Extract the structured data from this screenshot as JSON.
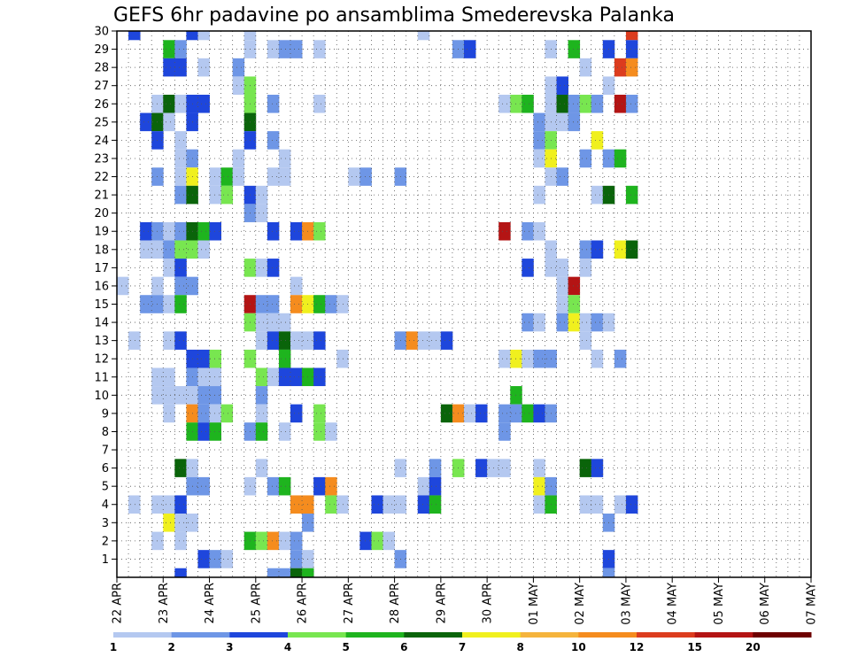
{
  "chart_data": {
    "type": "heatmap",
    "title": "GEFS 6hr padavine po ansamblima Smederevska Palanka",
    "xlabel": "",
    "ylabel": "",
    "x_ticks": [
      "22 APR",
      "23 APR",
      "24 APR",
      "25 APR",
      "26 APR",
      "27 APR",
      "28 APR",
      "29 APR",
      "30 APR",
      "01 MAY",
      "02 MAY",
      "03 MAY",
      "04 MAY",
      "05 MAY",
      "06 MAY",
      "07 MAY"
    ],
    "xlim": [
      "22 APR 00Z",
      "07 MAY 00Z"
    ],
    "ylim": [
      0,
      30
    ],
    "y_ticks": [
      1,
      2,
      3,
      4,
      5,
      6,
      7,
      8,
      9,
      10,
      11,
      12,
      13,
      14,
      15,
      16,
      17,
      18,
      19,
      20,
      21,
      22,
      23,
      24,
      25,
      26,
      27,
      28,
      29,
      30
    ],
    "grid": true,
    "legend": {
      "position": "bottom",
      "labels": [
        "1",
        "2",
        "3",
        "4",
        "5",
        "6",
        "7",
        "8",
        "10",
        "12",
        "15",
        "20"
      ],
      "colors": [
        "#b4c8f0",
        "#6e96e6",
        "#1e46dc",
        "#78e650",
        "#1eb41e",
        "#0a640a",
        "#f0f01e",
        "#f5b43c",
        "#f58c1e",
        "#dc3c1e",
        "#b41414",
        "#6e0000"
      ]
    },
    "color_values": [
      1,
      2,
      3,
      4,
      5,
      6,
      7,
      8,
      10,
      12,
      15,
      20
    ],
    "points": [
      [
        1,
        30,
        3
      ],
      [
        6,
        30,
        3
      ],
      [
        7,
        30,
        1
      ],
      [
        11,
        30,
        1
      ],
      [
        26,
        30,
        1
      ],
      [
        44,
        30,
        12
      ],
      [
        4,
        29,
        5
      ],
      [
        5,
        29,
        2
      ],
      [
        11,
        29,
        1
      ],
      [
        13,
        29,
        1
      ],
      [
        14,
        29,
        2
      ],
      [
        15,
        29,
        2
      ],
      [
        17,
        29,
        1
      ],
      [
        29,
        29,
        2
      ],
      [
        30,
        29,
        3
      ],
      [
        37,
        29,
        1
      ],
      [
        39,
        29,
        5
      ],
      [
        42,
        29,
        3
      ],
      [
        44,
        29,
        3
      ],
      [
        4,
        28,
        3
      ],
      [
        5,
        28,
        3
      ],
      [
        7,
        28,
        1
      ],
      [
        10,
        28,
        2
      ],
      [
        40,
        28,
        1
      ],
      [
        43,
        28,
        12
      ],
      [
        44,
        28,
        10
      ],
      [
        10,
        27,
        1
      ],
      [
        11,
        27,
        4
      ],
      [
        37,
        27,
        1
      ],
      [
        38,
        27,
        3
      ],
      [
        42,
        27,
        1
      ],
      [
        3,
        26,
        1
      ],
      [
        4,
        26,
        6
      ],
      [
        5,
        26,
        1
      ],
      [
        6,
        26,
        3
      ],
      [
        7,
        26,
        3
      ],
      [
        11,
        26,
        4
      ],
      [
        13,
        26,
        2
      ],
      [
        17,
        26,
        1
      ],
      [
        33,
        26,
        1
      ],
      [
        34,
        26,
        4
      ],
      [
        35,
        26,
        5
      ],
      [
        37,
        26,
        1
      ],
      [
        38,
        26,
        6
      ],
      [
        39,
        26,
        2
      ],
      [
        40,
        26,
        4
      ],
      [
        41,
        26,
        2
      ],
      [
        43,
        26,
        15
      ],
      [
        44,
        26,
        2
      ],
      [
        2,
        25,
        3
      ],
      [
        3,
        25,
        6
      ],
      [
        4,
        25,
        1
      ],
      [
        6,
        25,
        3
      ],
      [
        11,
        25,
        6
      ],
      [
        36,
        25,
        2
      ],
      [
        37,
        25,
        1
      ],
      [
        38,
        25,
        1
      ],
      [
        39,
        25,
        2
      ],
      [
        3,
        24,
        3
      ],
      [
        5,
        24,
        1
      ],
      [
        11,
        24,
        3
      ],
      [
        13,
        24,
        2
      ],
      [
        36,
        24,
        2
      ],
      [
        37,
        24,
        4
      ],
      [
        41,
        24,
        7
      ],
      [
        5,
        23,
        1
      ],
      [
        6,
        23,
        2
      ],
      [
        10,
        23,
        1
      ],
      [
        14,
        23,
        1
      ],
      [
        36,
        23,
        1
      ],
      [
        37,
        23,
        7
      ],
      [
        40,
        23,
        2
      ],
      [
        42,
        23,
        2
      ],
      [
        43,
        23,
        5
      ],
      [
        3,
        22,
        2
      ],
      [
        5,
        22,
        1
      ],
      [
        6,
        22,
        7
      ],
      [
        8,
        22,
        1
      ],
      [
        9,
        22,
        5
      ],
      [
        10,
        22,
        1
      ],
      [
        13,
        22,
        1
      ],
      [
        14,
        22,
        1
      ],
      [
        20,
        22,
        1
      ],
      [
        21,
        22,
        2
      ],
      [
        24,
        22,
        2
      ],
      [
        37,
        22,
        1
      ],
      [
        38,
        22,
        2
      ],
      [
        5,
        21,
        2
      ],
      [
        6,
        21,
        6
      ],
      [
        8,
        21,
        1
      ],
      [
        9,
        21,
        4
      ],
      [
        11,
        21,
        3
      ],
      [
        12,
        21,
        1
      ],
      [
        36,
        21,
        1
      ],
      [
        41,
        21,
        1
      ],
      [
        42,
        21,
        6
      ],
      [
        44,
        21,
        5
      ],
      [
        11,
        20,
        2
      ],
      [
        12,
        20,
        1
      ],
      [
        2,
        19,
        3
      ],
      [
        3,
        19,
        2
      ],
      [
        4,
        19,
        1
      ],
      [
        5,
        19,
        2
      ],
      [
        6,
        19,
        6
      ],
      [
        7,
        19,
        5
      ],
      [
        8,
        19,
        3
      ],
      [
        13,
        19,
        3
      ],
      [
        15,
        19,
        3
      ],
      [
        16,
        19,
        10
      ],
      [
        17,
        19,
        4
      ],
      [
        33,
        19,
        15
      ],
      [
        35,
        19,
        2
      ],
      [
        36,
        19,
        1
      ],
      [
        2,
        18,
        1
      ],
      [
        3,
        18,
        1
      ],
      [
        4,
        18,
        2
      ],
      [
        5,
        18,
        4
      ],
      [
        6,
        18,
        4
      ],
      [
        7,
        18,
        1
      ],
      [
        37,
        18,
        1
      ],
      [
        40,
        18,
        2
      ],
      [
        41,
        18,
        3
      ],
      [
        43,
        18,
        7
      ],
      [
        44,
        18,
        6
      ],
      [
        4,
        17,
        1
      ],
      [
        5,
        17,
        3
      ],
      [
        11,
        17,
        4
      ],
      [
        12,
        17,
        1
      ],
      [
        13,
        17,
        3
      ],
      [
        35,
        17,
        3
      ],
      [
        37,
        17,
        1
      ],
      [
        38,
        17,
        1
      ],
      [
        40,
        17,
        1
      ],
      [
        0,
        16,
        1
      ],
      [
        3,
        16,
        1
      ],
      [
        5,
        16,
        2
      ],
      [
        6,
        16,
        2
      ],
      [
        15,
        16,
        1
      ],
      [
        38,
        16,
        1
      ],
      [
        39,
        16,
        15
      ],
      [
        2,
        15,
        2
      ],
      [
        3,
        15,
        2
      ],
      [
        4,
        15,
        1
      ],
      [
        5,
        15,
        5
      ],
      [
        11,
        15,
        15
      ],
      [
        12,
        15,
        2
      ],
      [
        13,
        15,
        2
      ],
      [
        15,
        15,
        10
      ],
      [
        16,
        15,
        7
      ],
      [
        17,
        15,
        5
      ],
      [
        18,
        15,
        2
      ],
      [
        19,
        15,
        1
      ],
      [
        38,
        15,
        1
      ],
      [
        39,
        15,
        4
      ],
      [
        11,
        14,
        4
      ],
      [
        12,
        14,
        1
      ],
      [
        13,
        14,
        1
      ],
      [
        14,
        14,
        1
      ],
      [
        35,
        14,
        2
      ],
      [
        36,
        14,
        1
      ],
      [
        38,
        14,
        2
      ],
      [
        39,
        14,
        7
      ],
      [
        40,
        14,
        1
      ],
      [
        41,
        14,
        2
      ],
      [
        42,
        14,
        1
      ],
      [
        1,
        13,
        1
      ],
      [
        4,
        13,
        1
      ],
      [
        5,
        13,
        3
      ],
      [
        12,
        13,
        1
      ],
      [
        13,
        13,
        3
      ],
      [
        14,
        13,
        6
      ],
      [
        15,
        13,
        1
      ],
      [
        16,
        13,
        1
      ],
      [
        17,
        13,
        3
      ],
      [
        24,
        13,
        2
      ],
      [
        25,
        13,
        10
      ],
      [
        26,
        13,
        1
      ],
      [
        27,
        13,
        1
      ],
      [
        28,
        13,
        3
      ],
      [
        40,
        13,
        1
      ],
      [
        6,
        12,
        3
      ],
      [
        7,
        12,
        3
      ],
      [
        8,
        12,
        4
      ],
      [
        11,
        12,
        4
      ],
      [
        14,
        12,
        5
      ],
      [
        19,
        12,
        1
      ],
      [
        33,
        12,
        1
      ],
      [
        34,
        12,
        7
      ],
      [
        35,
        12,
        1
      ],
      [
        36,
        12,
        2
      ],
      [
        37,
        12,
        2
      ],
      [
        41,
        12,
        1
      ],
      [
        43,
        12,
        2
      ],
      [
        3,
        11,
        1
      ],
      [
        4,
        11,
        1
      ],
      [
        6,
        11,
        2
      ],
      [
        7,
        11,
        1
      ],
      [
        8,
        11,
        1
      ],
      [
        12,
        11,
        4
      ],
      [
        13,
        11,
        1
      ],
      [
        14,
        11,
        3
      ],
      [
        15,
        11,
        3
      ],
      [
        16,
        11,
        5
      ],
      [
        17,
        11,
        3
      ],
      [
        3,
        10,
        1
      ],
      [
        4,
        10,
        1
      ],
      [
        5,
        10,
        1
      ],
      [
        6,
        10,
        1
      ],
      [
        7,
        10,
        2
      ],
      [
        8,
        10,
        2
      ],
      [
        12,
        10,
        2
      ],
      [
        34,
        10,
        5
      ],
      [
        4,
        9,
        1
      ],
      [
        6,
        9,
        10
      ],
      [
        7,
        9,
        2
      ],
      [
        8,
        9,
        1
      ],
      [
        9,
        9,
        4
      ],
      [
        12,
        9,
        1
      ],
      [
        15,
        9,
        3
      ],
      [
        17,
        9,
        4
      ],
      [
        28,
        9,
        6
      ],
      [
        29,
        9,
        10
      ],
      [
        30,
        9,
        1
      ],
      [
        31,
        9,
        3
      ],
      [
        33,
        9,
        2
      ],
      [
        34,
        9,
        2
      ],
      [
        35,
        9,
        5
      ],
      [
        36,
        9,
        3
      ],
      [
        37,
        9,
        2
      ],
      [
        6,
        8,
        5
      ],
      [
        7,
        8,
        3
      ],
      [
        8,
        8,
        5
      ],
      [
        11,
        8,
        2
      ],
      [
        12,
        8,
        5
      ],
      [
        14,
        8,
        1
      ],
      [
        17,
        8,
        4
      ],
      [
        18,
        8,
        1
      ],
      [
        33,
        8,
        2
      ],
      [
        5,
        6,
        6
      ],
      [
        6,
        6,
        1
      ],
      [
        12,
        6,
        1
      ],
      [
        24,
        6,
        1
      ],
      [
        27,
        6,
        2
      ],
      [
        29,
        6,
        4
      ],
      [
        31,
        6,
        3
      ],
      [
        32,
        6,
        1
      ],
      [
        33,
        6,
        1
      ],
      [
        36,
        6,
        1
      ],
      [
        40,
        6,
        6
      ],
      [
        41,
        6,
        3
      ],
      [
        6,
        5,
        2
      ],
      [
        7,
        5,
        2
      ],
      [
        11,
        5,
        1
      ],
      [
        13,
        5,
        2
      ],
      [
        14,
        5,
        5
      ],
      [
        17,
        5,
        3
      ],
      [
        18,
        5,
        10
      ],
      [
        26,
        5,
        1
      ],
      [
        27,
        5,
        3
      ],
      [
        36,
        5,
        7
      ],
      [
        37,
        5,
        2
      ],
      [
        1,
        4,
        1
      ],
      [
        3,
        4,
        1
      ],
      [
        4,
        4,
        1
      ],
      [
        5,
        4,
        3
      ],
      [
        15,
        4,
        10
      ],
      [
        16,
        4,
        10
      ],
      [
        18,
        4,
        4
      ],
      [
        19,
        4,
        1
      ],
      [
        22,
        4,
        3
      ],
      [
        23,
        4,
        1
      ],
      [
        24,
        4,
        1
      ],
      [
        26,
        4,
        3
      ],
      [
        27,
        4,
        5
      ],
      [
        36,
        4,
        1
      ],
      [
        37,
        4,
        5
      ],
      [
        40,
        4,
        1
      ],
      [
        41,
        4,
        1
      ],
      [
        43,
        4,
        1
      ],
      [
        44,
        4,
        3
      ],
      [
        4,
        3,
        7
      ],
      [
        5,
        3,
        1
      ],
      [
        6,
        3,
        1
      ],
      [
        16,
        3,
        2
      ],
      [
        42,
        3,
        2
      ],
      [
        3,
        2,
        1
      ],
      [
        5,
        2,
        1
      ],
      [
        11,
        2,
        5
      ],
      [
        12,
        2,
        4
      ],
      [
        13,
        2,
        10
      ],
      [
        14,
        2,
        1
      ],
      [
        15,
        2,
        2
      ],
      [
        21,
        2,
        3
      ],
      [
        22,
        2,
        4
      ],
      [
        23,
        2,
        1
      ],
      [
        7,
        1,
        3
      ],
      [
        8,
        1,
        2
      ],
      [
        9,
        1,
        1
      ],
      [
        15,
        1,
        2
      ],
      [
        16,
        1,
        1
      ],
      [
        24,
        1,
        2
      ],
      [
        42,
        1,
        3
      ],
      [
        5,
        0,
        3
      ],
      [
        13,
        0,
        2
      ],
      [
        14,
        0,
        2
      ],
      [
        15,
        0,
        6
      ],
      [
        16,
        0,
        5
      ],
      [
        42,
        0,
        2
      ]
    ]
  }
}
